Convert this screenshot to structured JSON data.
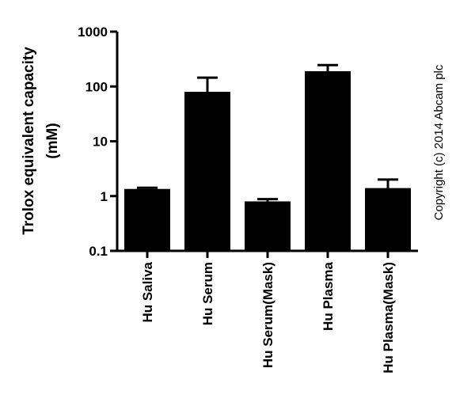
{
  "chart_data": {
    "type": "bar",
    "categories": [
      "Hu Saliva",
      "Hu Serum",
      "Hu Serum(Mask)",
      "Hu Plasma",
      "Hu Plasma(Mask)"
    ],
    "values": [
      1.35,
      80,
      0.8,
      190,
      1.4
    ],
    "error_upper": [
      1.42,
      145,
      0.88,
      245,
      2.0
    ],
    "yscale": "log",
    "ylim": [
      0.1,
      1000
    ],
    "yticks": [
      "0.1",
      "1",
      "10",
      "100",
      "1000"
    ],
    "ylabel_line1": "Trolox equivalent capacity",
    "ylabel_line2": "(mM)",
    "bar_color": "#000000",
    "grid": false
  },
  "copyright": "Copyright (c) 2014 Abcam plc"
}
